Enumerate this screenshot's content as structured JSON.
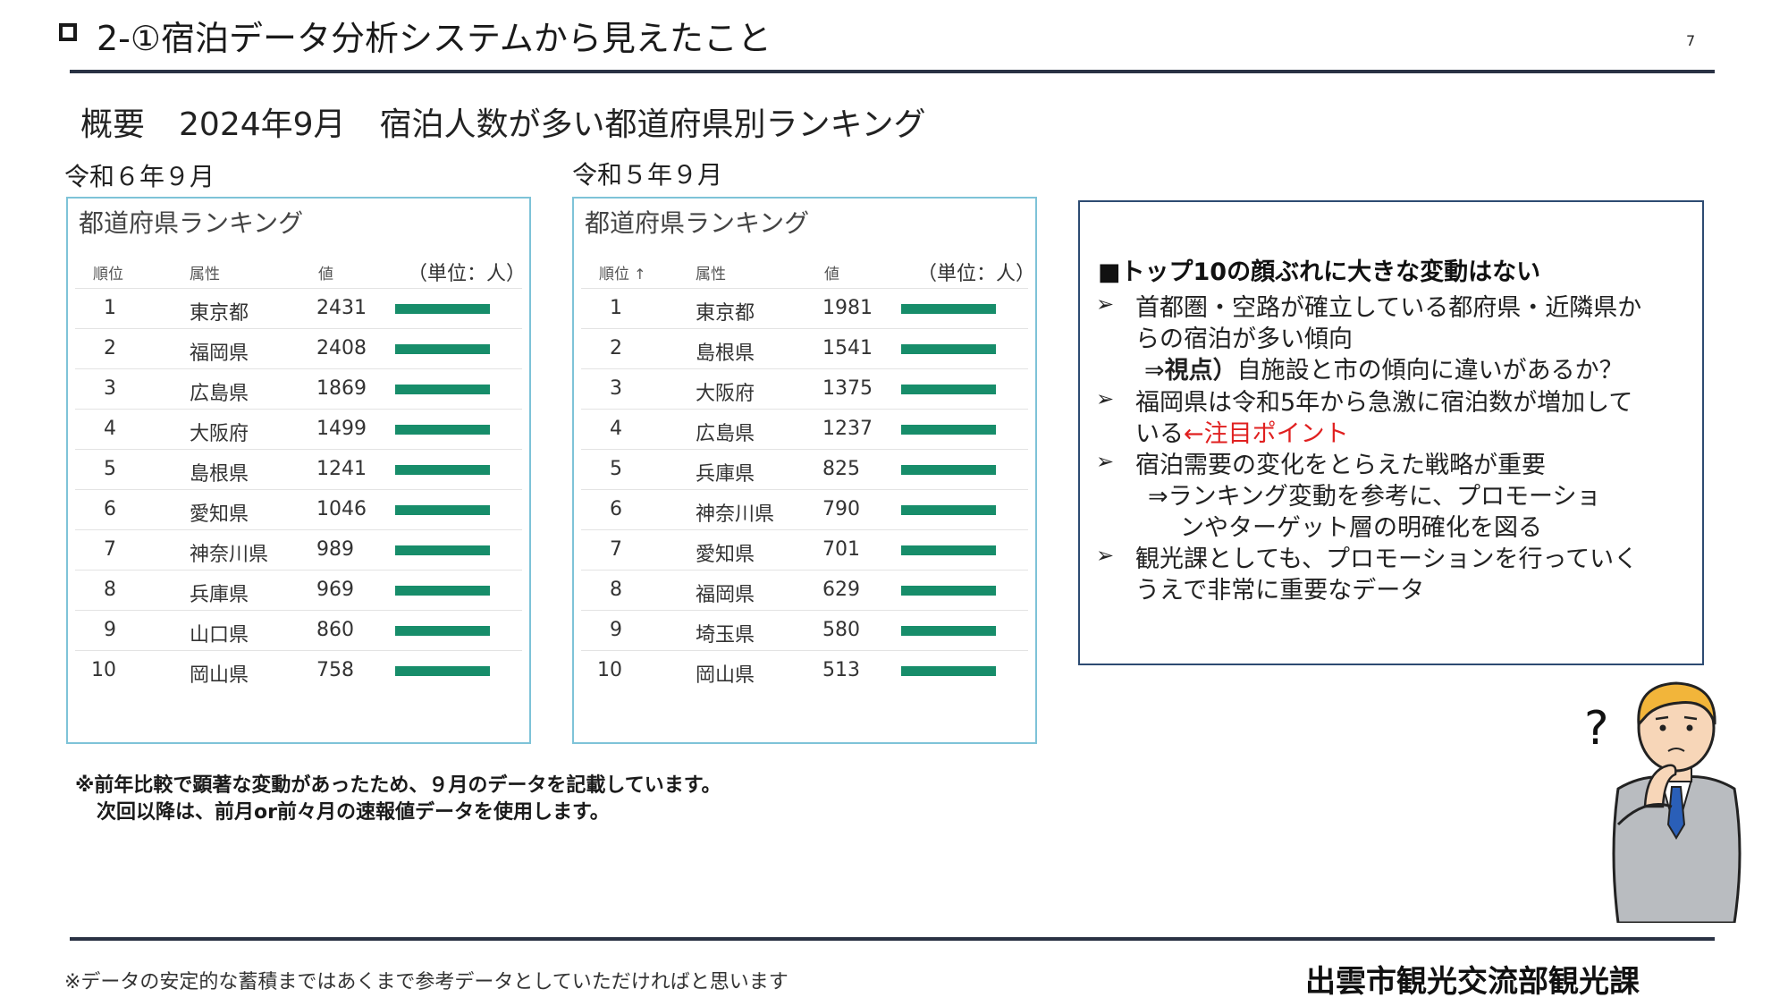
{
  "header": {
    "title": "2-①宿泊データ分析システムから見えたこと",
    "page_number": "7"
  },
  "overview": {
    "label": "概要",
    "month": "2024年9月",
    "heading": "宿泊人数が多い都道府県別ランキング"
  },
  "panels": [
    {
      "period": "令和６年９月",
      "title": "都道府県ランキング",
      "col_rank": "順位",
      "col_attr": "属性",
      "col_value": "値",
      "unit": "（単位：人）",
      "rows": [
        {
          "rank": "1",
          "pref": "東京都",
          "value": "2431"
        },
        {
          "rank": "2",
          "pref": "福岡県",
          "value": "2408"
        },
        {
          "rank": "3",
          "pref": "広島県",
          "value": "1869"
        },
        {
          "rank": "4",
          "pref": "大阪府",
          "value": "1499"
        },
        {
          "rank": "5",
          "pref": "島根県",
          "value": "1241"
        },
        {
          "rank": "6",
          "pref": "愛知県",
          "value": "1046"
        },
        {
          "rank": "7",
          "pref": "神奈川県",
          "value": "989"
        },
        {
          "rank": "8",
          "pref": "兵庫県",
          "value": "969"
        },
        {
          "rank": "9",
          "pref": "山口県",
          "value": "860"
        },
        {
          "rank": "10",
          "pref": "岡山県",
          "value": "758"
        }
      ]
    },
    {
      "period": "令和５年９月",
      "title": "都道府県ランキング",
      "col_rank": "順位",
      "col_attr": "属性",
      "col_value": "値",
      "unit": "（単位：人）",
      "rows": [
        {
          "rank": "1",
          "pref": "東京都",
          "value": "1981"
        },
        {
          "rank": "2",
          "pref": "島根県",
          "value": "1541"
        },
        {
          "rank": "3",
          "pref": "大阪府",
          "value": "1375"
        },
        {
          "rank": "4",
          "pref": "広島県",
          "value": "1237"
        },
        {
          "rank": "5",
          "pref": "兵庫県",
          "value": "825"
        },
        {
          "rank": "6",
          "pref": "神奈川県",
          "value": "790"
        },
        {
          "rank": "7",
          "pref": "愛知県",
          "value": "701"
        },
        {
          "rank": "8",
          "pref": "福岡県",
          "value": "629"
        },
        {
          "rank": "9",
          "pref": "埼玉県",
          "value": "580"
        },
        {
          "rank": "10",
          "pref": "岡山県",
          "value": "513"
        }
      ]
    }
  ],
  "notes": {
    "heading": "■トップ10の顔ぶれに大きな変動はない",
    "lines": [
      "首都圏・空路が確立している都府県・近隣県か",
      "らの宿泊が多い傾向",
      "⇒",
      "視点）",
      "自施設と市の傾向に違いがあるか？",
      "福岡県は令和5年から急激に宿泊数が増加して",
      "いる",
      "←注目ポイント",
      "宿泊需要の変化をとらえた戦略が重要",
      "⇒ランキング変動を参考に、プロモーショ",
      "ンやターゲット層の明確化を図る",
      "観光課としても、プロモーションを行っていく",
      "うえで非常に重要なデータ"
    ],
    "bullet": "➢"
  },
  "footnotes": {
    "line1": "※前年比較で顕著な変動があったため、９月のデータを記載しています。",
    "line2": "次回以降は、前月or前々月の速報値データを使用します。"
  },
  "bottom_note": "※データの安定的な蓄積まではあくまで参考データとしていただければと思います",
  "department": "出雲市観光交流部観光課",
  "colors": {
    "bar": "#178d6a",
    "panel_border": "#7ec3d8",
    "note_border": "#2d4b72",
    "highlight": "#e02020"
  }
}
